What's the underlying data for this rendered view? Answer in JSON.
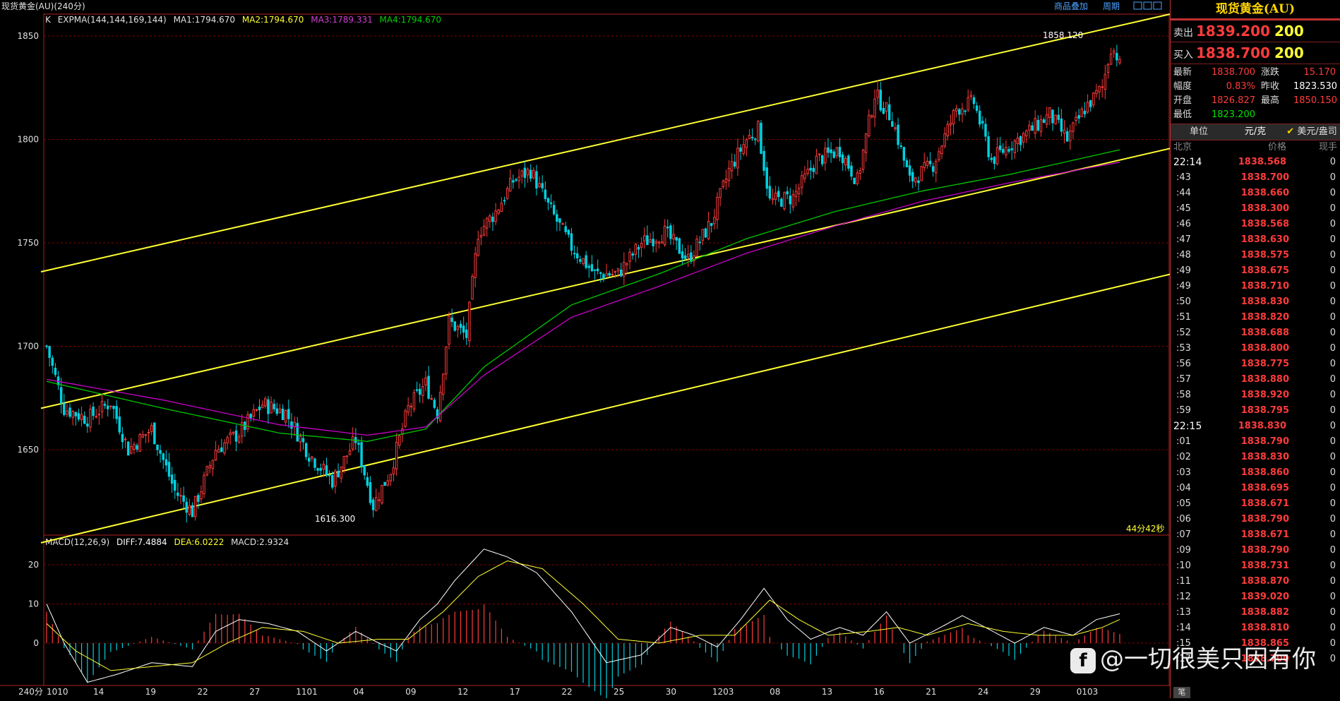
{
  "window": {
    "title": "现货黄金(AU)(240分)",
    "top_links": [
      "商品叠加",
      "周期"
    ],
    "period_label": "240分"
  },
  "main_legend": {
    "k_label": "K",
    "expma": "EXPMA(144,144,169,144)",
    "ma1": "MA1:1794.670",
    "ma2": "MA2:1794.670",
    "ma3": "MA3:1789.331",
    "ma4": "MA4:1794.670"
  },
  "macd_legend": {
    "name": "MACD(12,26,9)",
    "diff": "DIFF:7.4884",
    "dea": "DEA:6.0222",
    "macd": "MACD:2.9324"
  },
  "annotations": {
    "high_label": "1858.120",
    "low_label": "1616.300",
    "countdown": "44分42秒"
  },
  "colors": {
    "up": "#ff3b3b",
    "down": "#00d0e0",
    "ma_green": "#00c800",
    "ma_magenta": "#c800c8",
    "channel": "#ffff33",
    "dea": "#ffff33",
    "diff": "#ffffff",
    "grid": "#800000"
  },
  "chart_data": [
    {
      "type": "candlestick",
      "title": "现货黄金(AU)(240分)",
      "y_ticks": [
        1650,
        1700,
        1750,
        1800,
        1850
      ],
      "ylim": [
        1610,
        1862
      ],
      "x_tick_labels": [
        "1010",
        "14",
        "19",
        "22",
        "27",
        "1101",
        "04",
        "09",
        "12",
        "17",
        "22",
        "25",
        "30",
        "1203",
        "08",
        "13",
        "16",
        "21",
        "24",
        "29",
        "0103"
      ],
      "close_anchors": [
        {
          "x": 0,
          "v": 1700
        },
        {
          "x": 6,
          "v": 1670
        },
        {
          "x": 14,
          "v": 1665
        },
        {
          "x": 22,
          "v": 1673
        },
        {
          "x": 28,
          "v": 1650
        },
        {
          "x": 36,
          "v": 1660
        },
        {
          "x": 44,
          "v": 1630
        },
        {
          "x": 50,
          "v": 1620
        },
        {
          "x": 58,
          "v": 1650
        },
        {
          "x": 66,
          "v": 1658
        },
        {
          "x": 74,
          "v": 1672
        },
        {
          "x": 82,
          "v": 1668
        },
        {
          "x": 90,
          "v": 1648
        },
        {
          "x": 98,
          "v": 1635
        },
        {
          "x": 106,
          "v": 1655
        },
        {
          "x": 112,
          "v": 1623
        },
        {
          "x": 118,
          "v": 1640
        },
        {
          "x": 124,
          "v": 1670
        },
        {
          "x": 130,
          "v": 1682
        },
        {
          "x": 134,
          "v": 1668
        },
        {
          "x": 138,
          "v": 1712
        },
        {
          "x": 144,
          "v": 1705
        },
        {
          "x": 148,
          "v": 1755
        },
        {
          "x": 154,
          "v": 1765
        },
        {
          "x": 160,
          "v": 1780
        },
        {
          "x": 166,
          "v": 1785
        },
        {
          "x": 172,
          "v": 1768
        },
        {
          "x": 180,
          "v": 1748
        },
        {
          "x": 188,
          "v": 1735
        },
        {
          "x": 196,
          "v": 1735
        },
        {
          "x": 204,
          "v": 1750
        },
        {
          "x": 212,
          "v": 1755
        },
        {
          "x": 220,
          "v": 1742
        },
        {
          "x": 228,
          "v": 1760
        },
        {
          "x": 234,
          "v": 1785
        },
        {
          "x": 240,
          "v": 1800
        },
        {
          "x": 244,
          "v": 1805
        },
        {
          "x": 248,
          "v": 1770
        },
        {
          "x": 256,
          "v": 1772
        },
        {
          "x": 264,
          "v": 1790
        },
        {
          "x": 272,
          "v": 1795
        },
        {
          "x": 278,
          "v": 1780
        },
        {
          "x": 284,
          "v": 1822
        },
        {
          "x": 290,
          "v": 1810
        },
        {
          "x": 296,
          "v": 1780
        },
        {
          "x": 304,
          "v": 1788
        },
        {
          "x": 312,
          "v": 1815
        },
        {
          "x": 318,
          "v": 1818
        },
        {
          "x": 324,
          "v": 1790
        },
        {
          "x": 330,
          "v": 1797
        },
        {
          "x": 338,
          "v": 1805
        },
        {
          "x": 344,
          "v": 1812
        },
        {
          "x": 350,
          "v": 1800
        },
        {
          "x": 356,
          "v": 1815
        },
        {
          "x": 362,
          "v": 1825
        },
        {
          "x": 365,
          "v": 1845
        },
        {
          "x": 368,
          "v": 1838.7
        }
      ],
      "n_candles": 369,
      "last_close": 1838.7,
      "high": 1858.12,
      "low": 1616.3,
      "moving_averages": [
        {
          "name": "MA1",
          "color": "#00c800",
          "anchors": [
            {
              "x": 0,
              "v": 1683
            },
            {
              "x": 40,
              "v": 1670
            },
            {
              "x": 80,
              "v": 1658
            },
            {
              "x": 110,
              "v": 1654
            },
            {
              "x": 130,
              "v": 1660
            },
            {
              "x": 150,
              "v": 1690
            },
            {
              "x": 180,
              "v": 1720
            },
            {
              "x": 210,
              "v": 1735
            },
            {
              "x": 240,
              "v": 1752
            },
            {
              "x": 270,
              "v": 1765
            },
            {
              "x": 300,
              "v": 1775
            },
            {
              "x": 330,
              "v": 1783
            },
            {
              "x": 368,
              "v": 1795
            }
          ]
        },
        {
          "name": "MA3",
          "color": "#c800c8",
          "anchors": [
            {
              "x": 0,
              "v": 1684
            },
            {
              "x": 40,
              "v": 1674
            },
            {
              "x": 80,
              "v": 1662
            },
            {
              "x": 110,
              "v": 1657
            },
            {
              "x": 130,
              "v": 1661
            },
            {
              "x": 150,
              "v": 1686
            },
            {
              "x": 180,
              "v": 1714
            },
            {
              "x": 210,
              "v": 1729
            },
            {
              "x": 240,
              "v": 1745
            },
            {
              "x": 270,
              "v": 1758
            },
            {
              "x": 300,
              "v": 1770
            },
            {
              "x": 330,
              "v": 1779
            },
            {
              "x": 368,
              "v": 1789
            }
          ]
        }
      ],
      "channel_lines": [
        {
          "x0": 0,
          "v0": 1736,
          "x1": 368,
          "v1": 1855
        },
        {
          "x0": 0,
          "v0": 1670,
          "x1": 368,
          "v1": 1790
        },
        {
          "x0": 0,
          "v0": 1605,
          "x1": 368,
          "v1": 1729
        }
      ]
    },
    {
      "type": "macd",
      "title": "MACD(12,26,9)",
      "y_ticks": [
        0,
        10,
        20
      ],
      "ylim": [
        -17,
        26
      ],
      "diff_anchors": [
        {
          "x": 0,
          "v": 10
        },
        {
          "x": 6,
          "v": 0
        },
        {
          "x": 14,
          "v": -10
        },
        {
          "x": 24,
          "v": -8
        },
        {
          "x": 36,
          "v": -5
        },
        {
          "x": 50,
          "v": -6
        },
        {
          "x": 58,
          "v": 3
        },
        {
          "x": 66,
          "v": 6
        },
        {
          "x": 76,
          "v": 5
        },
        {
          "x": 86,
          "v": 3
        },
        {
          "x": 96,
          "v": -2
        },
        {
          "x": 106,
          "v": 3
        },
        {
          "x": 114,
          "v": 0
        },
        {
          "x": 120,
          "v": -2
        },
        {
          "x": 128,
          "v": 6
        },
        {
          "x": 134,
          "v": 10
        },
        {
          "x": 140,
          "v": 16
        },
        {
          "x": 150,
          "v": 24
        },
        {
          "x": 158,
          "v": 22
        },
        {
          "x": 168,
          "v": 18
        },
        {
          "x": 180,
          "v": 8
        },
        {
          "x": 192,
          "v": -5
        },
        {
          "x": 204,
          "v": -3
        },
        {
          "x": 214,
          "v": 4
        },
        {
          "x": 222,
          "v": 2
        },
        {
          "x": 230,
          "v": -1
        },
        {
          "x": 238,
          "v": 6
        },
        {
          "x": 246,
          "v": 14
        },
        {
          "x": 254,
          "v": 6
        },
        {
          "x": 262,
          "v": 1
        },
        {
          "x": 272,
          "v": 4
        },
        {
          "x": 280,
          "v": 2
        },
        {
          "x": 288,
          "v": 8
        },
        {
          "x": 296,
          "v": 0
        },
        {
          "x": 304,
          "v": 3
        },
        {
          "x": 314,
          "v": 7
        },
        {
          "x": 322,
          "v": 4
        },
        {
          "x": 332,
          "v": 0
        },
        {
          "x": 342,
          "v": 4
        },
        {
          "x": 352,
          "v": 2
        },
        {
          "x": 360,
          "v": 6
        },
        {
          "x": 368,
          "v": 7.4884
        }
      ],
      "dea_anchors": [
        {
          "x": 0,
          "v": 5
        },
        {
          "x": 10,
          "v": -2
        },
        {
          "x": 22,
          "v": -7
        },
        {
          "x": 36,
          "v": -6
        },
        {
          "x": 50,
          "v": -5
        },
        {
          "x": 62,
          "v": 0
        },
        {
          "x": 74,
          "v": 4
        },
        {
          "x": 88,
          "v": 3
        },
        {
          "x": 100,
          "v": 0
        },
        {
          "x": 114,
          "v": 1
        },
        {
          "x": 124,
          "v": 1
        },
        {
          "x": 136,
          "v": 8
        },
        {
          "x": 148,
          "v": 17
        },
        {
          "x": 158,
          "v": 21
        },
        {
          "x": 170,
          "v": 19
        },
        {
          "x": 184,
          "v": 10
        },
        {
          "x": 196,
          "v": 1
        },
        {
          "x": 210,
          "v": 0
        },
        {
          "x": 224,
          "v": 2
        },
        {
          "x": 236,
          "v": 2
        },
        {
          "x": 248,
          "v": 11
        },
        {
          "x": 258,
          "v": 6
        },
        {
          "x": 268,
          "v": 2
        },
        {
          "x": 282,
          "v": 3
        },
        {
          "x": 292,
          "v": 4
        },
        {
          "x": 302,
          "v": 2
        },
        {
          "x": 316,
          "v": 5
        },
        {
          "x": 328,
          "v": 3
        },
        {
          "x": 340,
          "v": 2
        },
        {
          "x": 352,
          "v": 2
        },
        {
          "x": 362,
          "v": 4
        },
        {
          "x": 368,
          "v": 6.0222
        }
      ],
      "last_macd": 2.9324
    }
  ],
  "right_panel": {
    "title": "现货黄金(AU)",
    "sell": {
      "label": "卖出",
      "price": "1839.200",
      "volume": "200"
    },
    "buy": {
      "label": "买入",
      "price": "1838.700",
      "volume": "200"
    },
    "stats": [
      {
        "l1": "最新",
        "v1": "1838.700",
        "c1": "red",
        "l2": "涨跌",
        "v2": "15.170",
        "c2": "red"
      },
      {
        "l1": "幅度",
        "v1": "0.83%",
        "c1": "red",
        "l2": "昨收",
        "v2": "1823.530",
        "c2": "wht"
      },
      {
        "l1": "开盘",
        "v1": "1826.827",
        "c1": "red",
        "l2": "最高",
        "v2": "1850.150",
        "c2": "red"
      },
      {
        "l1": "最低",
        "v1": "1823.200",
        "c1": "grn",
        "l2": "",
        "v2": "",
        "c2": "wht"
      }
    ],
    "unit_row": {
      "label": "单位",
      "opt1": "元/克",
      "opt2": "美元/盎司"
    },
    "tick_header": {
      "time": "北京",
      "price": "价格",
      "volume": "现手"
    },
    "ticks": [
      {
        "t": "22:14",
        "p": "1838.568",
        "v": "0",
        "big": true
      },
      {
        "t": ":43",
        "p": "1838.700",
        "v": "0"
      },
      {
        "t": ":44",
        "p": "1838.660",
        "v": "0"
      },
      {
        "t": ":45",
        "p": "1838.300",
        "v": "0"
      },
      {
        "t": ":46",
        "p": "1838.568",
        "v": "0"
      },
      {
        "t": ":47",
        "p": "1838.630",
        "v": "0"
      },
      {
        "t": ":48",
        "p": "1838.575",
        "v": "0"
      },
      {
        "t": ":49",
        "p": "1838.675",
        "v": "0"
      },
      {
        "t": ":49",
        "p": "1838.710",
        "v": "0"
      },
      {
        "t": ":50",
        "p": "1838.830",
        "v": "0"
      },
      {
        "t": ":51",
        "p": "1838.820",
        "v": "0"
      },
      {
        "t": ":52",
        "p": "1838.688",
        "v": "0"
      },
      {
        "t": ":53",
        "p": "1838.800",
        "v": "0"
      },
      {
        "t": ":56",
        "p": "1838.775",
        "v": "0"
      },
      {
        "t": ":57",
        "p": "1838.880",
        "v": "0"
      },
      {
        "t": ":58",
        "p": "1838.920",
        "v": "0"
      },
      {
        "t": ":59",
        "p": "1838.795",
        "v": "0"
      },
      {
        "t": "22:15",
        "p": "1838.830",
        "v": "0",
        "big": true
      },
      {
        "t": ":01",
        "p": "1838.790",
        "v": "0"
      },
      {
        "t": ":02",
        "p": "1838.830",
        "v": "0"
      },
      {
        "t": ":03",
        "p": "1838.860",
        "v": "0"
      },
      {
        "t": ":04",
        "p": "1838.695",
        "v": "0"
      },
      {
        "t": ":05",
        "p": "1838.671",
        "v": "0"
      },
      {
        "t": ":06",
        "p": "1838.790",
        "v": "0"
      },
      {
        "t": ":07",
        "p": "1838.671",
        "v": "0"
      },
      {
        "t": ":09",
        "p": "1838.790",
        "v": "0"
      },
      {
        "t": ":10",
        "p": "1838.731",
        "v": "0"
      },
      {
        "t": ":11",
        "p": "1838.870",
        "v": "0"
      },
      {
        "t": ":12",
        "p": "1839.020",
        "v": "0"
      },
      {
        "t": ":13",
        "p": "1838.882",
        "v": "0"
      },
      {
        "t": ":14",
        "p": "1838.810",
        "v": "0"
      },
      {
        "t": ":15",
        "p": "1838.865",
        "v": "0"
      },
      {
        "t": ":17",
        "p": "1838.700",
        "v": "0"
      }
    ],
    "bottom_tag": "笔"
  },
  "watermark": {
    "logo": "f",
    "text": "@一切很美只因有你"
  }
}
